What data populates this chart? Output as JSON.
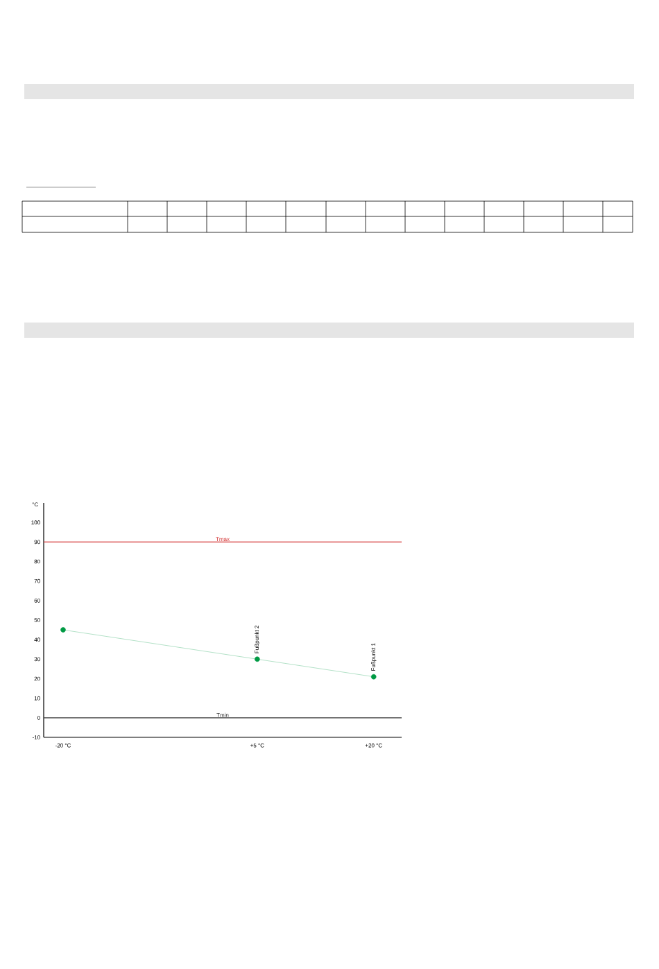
{
  "chart_data": {
    "type": "line",
    "ylabel": "°C",
    "x": [
      -20,
      5,
      20
    ],
    "values": [
      45,
      30,
      21
    ],
    "color": "#009a44",
    "marker": "circle",
    "line_style": "solid",
    "xlim": [
      -22.5,
      23.6
    ],
    "ylim": [
      -10,
      110
    ],
    "xticks": [
      {
        "value": -20,
        "label": "-20 °C"
      },
      {
        "value": 5,
        "label": "+5 °C"
      },
      {
        "value": 20,
        "label": "+20 °C"
      }
    ],
    "yticks": [
      -10,
      0,
      10,
      20,
      30,
      40,
      50,
      60,
      70,
      80,
      90,
      100
    ],
    "ref_lines": [
      {
        "axis": "y",
        "value": 90,
        "label": "Tmax",
        "color": "#d32f2f"
      },
      {
        "axis": "y",
        "value": 0,
        "label": "Tmin",
        "color": "#333333"
      }
    ],
    "annotations": [
      {
        "text": "Fußpunkt 2",
        "x": 5,
        "y": 30
      },
      {
        "text": "Fußpunkt 1",
        "x": 20,
        "y": 21
      }
    ]
  }
}
